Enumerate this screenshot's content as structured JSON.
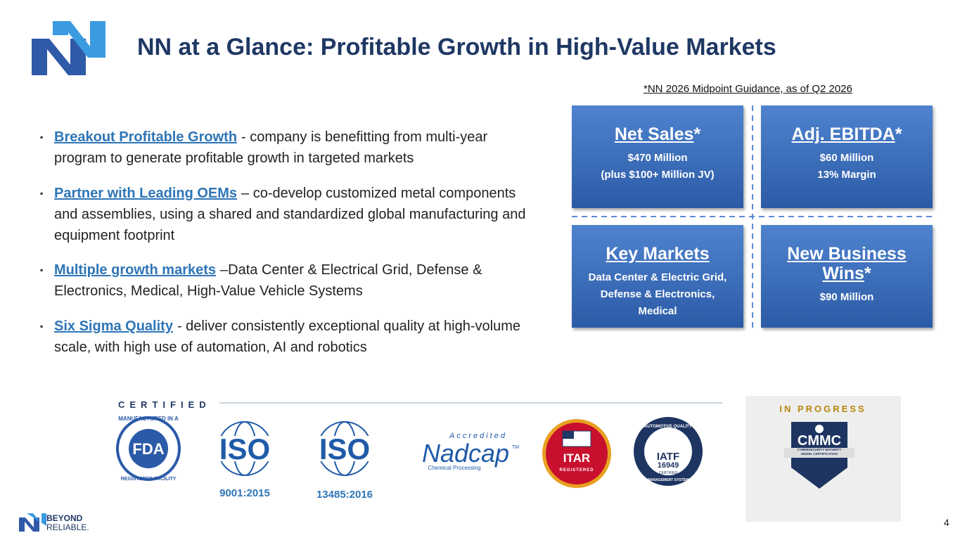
{
  "header": {
    "title": "NN at a Glance: Profitable Growth in High-Value Markets",
    "note": "*NN 2026 Midpoint Guidance, as of Q2 2026"
  },
  "bullets": [
    {
      "heading": "Breakout Profitable Growth",
      "text": "- company is benefitting from multi-year program to generate profitable growth in targeted markets"
    },
    {
      "heading": "Partner with Leading OEMs",
      "text": "– co-develop customized metal components and assemblies, using a shared and standardized global manufacturing and equipment footprint"
    },
    {
      "heading": "Multiple growth markets",
      "text": "–Data Center & Electrical Grid, Defense & Electronics, Medical, High-Value Vehicle Systems"
    },
    {
      "heading": "Six Sigma Quality",
      "text": "- deliver consistently exceptional quality at high-volume scale, with high use of automation, AI and robotics"
    }
  ],
  "cards": [
    {
      "title": "Net Sales",
      "suffix": "*",
      "lines": [
        "$470 Million",
        "(plus $100+ Million JV)"
      ]
    },
    {
      "title": "Adj. EBITDA",
      "suffix": "*",
      "lines": [
        "$60 Million",
        "13% Margin"
      ]
    },
    {
      "title": "Key Markets",
      "lines": [
        "Data Center & Electric Grid,",
        "Defense & Electronics,",
        "Medical"
      ]
    },
    {
      "title": "New Business Wins",
      "suffix": "*",
      "lines": [
        "$90 Million"
      ]
    }
  ],
  "certified": {
    "label": "CERTIFIED",
    "fda": {
      "top": "MANUFACTURED IN A",
      "main": "FDA",
      "bottom": "REGISTERED FACILITY"
    },
    "iso1": {
      "main": "ISO",
      "caption": "9001:2015"
    },
    "iso2": {
      "main": "ISO",
      "caption": "13485:2016"
    },
    "nadcap": {
      "top": "Accredited",
      "main": "Nadcap",
      "tm": "TM",
      "bottom": "Chemical Processing"
    },
    "itar": {
      "main": "ITAR",
      "sub": "REGISTERED"
    },
    "iatf": {
      "top": "AUTOMOTIVE QUALITY",
      "main": "IATF",
      "number": "16949",
      "badge": "CERTIFIED",
      "bottom": "MANAGEMENT SYSTEM"
    }
  },
  "in_progress": {
    "label": "IN PROGRESS",
    "main": "CMMC",
    "sub": "CYBERSECURITY MATURITY MODEL CERTIFICATION"
  },
  "footer": {
    "brand_top": "BEYOND",
    "brand_bottom": "RELIABLE.",
    "page": "4"
  }
}
